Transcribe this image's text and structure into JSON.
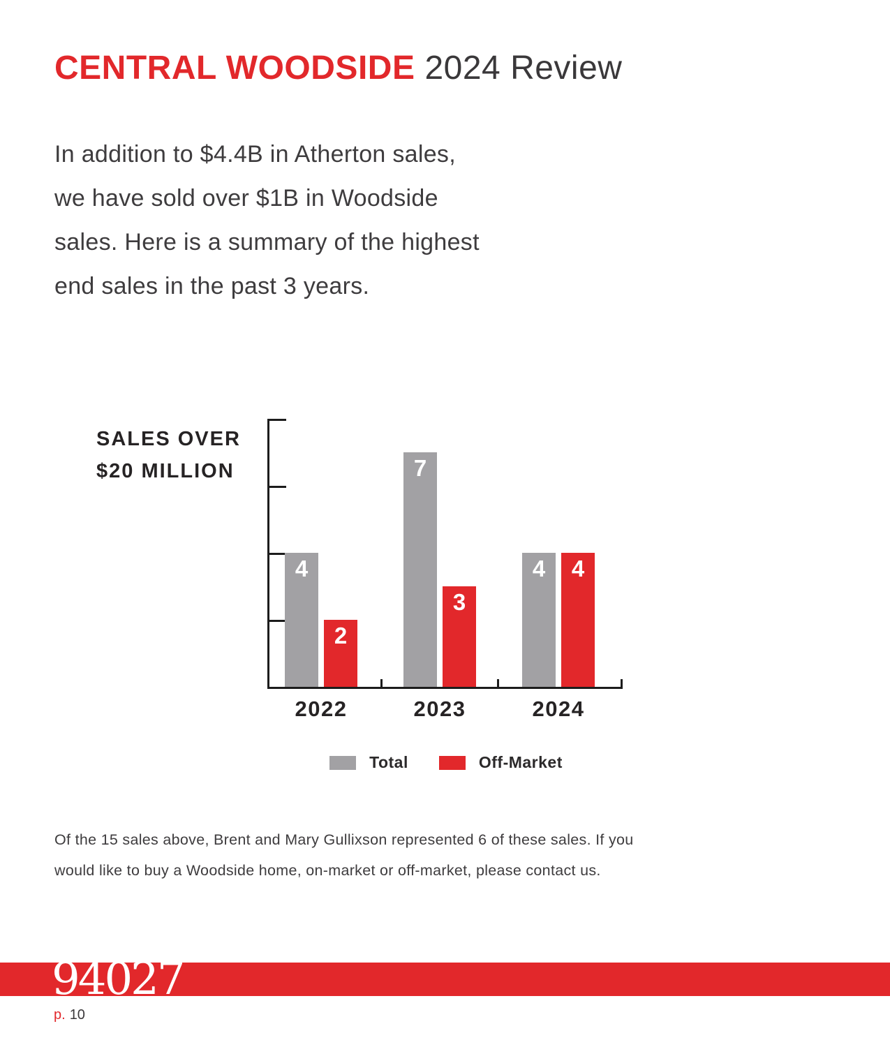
{
  "header": {
    "title_highlight": "CENTRAL WOODSIDE",
    "title_rest": "2024 Review"
  },
  "intro": {
    "lines": [
      "In addition to $4.4B in Atherton sales,",
      "we have sold over $1B in Woodside",
      "sales. Here is a summary of the highest",
      "end sales in the past 3 years."
    ]
  },
  "chart_data": {
    "type": "bar",
    "title_lines": [
      "SALES OVER",
      "$20 MILLION"
    ],
    "categories": [
      "2022",
      "2023",
      "2024"
    ],
    "series": [
      {
        "name": "Total",
        "color": "#A2A1A4",
        "values": [
          4,
          7,
          4
        ]
      },
      {
        "name": "Off-Market",
        "color": "#E2282B",
        "values": [
          2,
          3,
          4
        ]
      }
    ],
    "ylim": [
      0,
      8
    ],
    "ytick_interval": 2,
    "grid": false,
    "legend_position": "bottom",
    "value_labels": true
  },
  "footer_note": {
    "lines": [
      "Of the 15 sales above, Brent and Mary Gullixson represented 6 of these sales. If you",
      "would like to buy a Woodside home, on-market or off-market, please contact us."
    ]
  },
  "banner": {
    "zip": "94027",
    "page_prefix": "p.",
    "page_number": "10"
  },
  "colors": {
    "accent_red": "#E2282B",
    "bar_gray": "#A2A1A4",
    "text_dark": "#3E3C3E",
    "axis_black": "#1c1c1c"
  }
}
